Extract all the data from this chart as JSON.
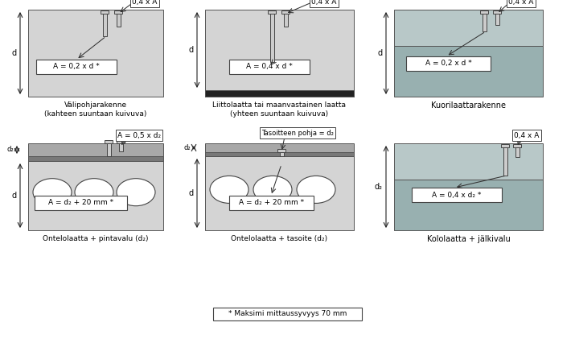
{
  "bg": "#ffffff",
  "lg": "#d4d4d4",
  "mg": "#a8a8a8",
  "dg": "#787878",
  "tl": "#b8c8c8",
  "tm": "#98b0b0",
  "bk": "#222222",
  "labels": {
    "p1_title": "Välipohjarakenne",
    "p1_sub": "(kahteen suuntaan kuivuva)",
    "p2_title": "Liittolaatta tai maanvastainen laatta",
    "p2_sub": "(yhteen suuntaan kuivuva)",
    "p3_title": "Kuorilaattarakenne",
    "p4_title": "Ontelolaatta + pintavalu (d₂)",
    "p5_title": "Ontelolaatta + tasoite (d₂)",
    "p6_title": "Kololaatta + jälkivalu",
    "footer": "* Maksimi mittaussyvyys 70 mm"
  }
}
